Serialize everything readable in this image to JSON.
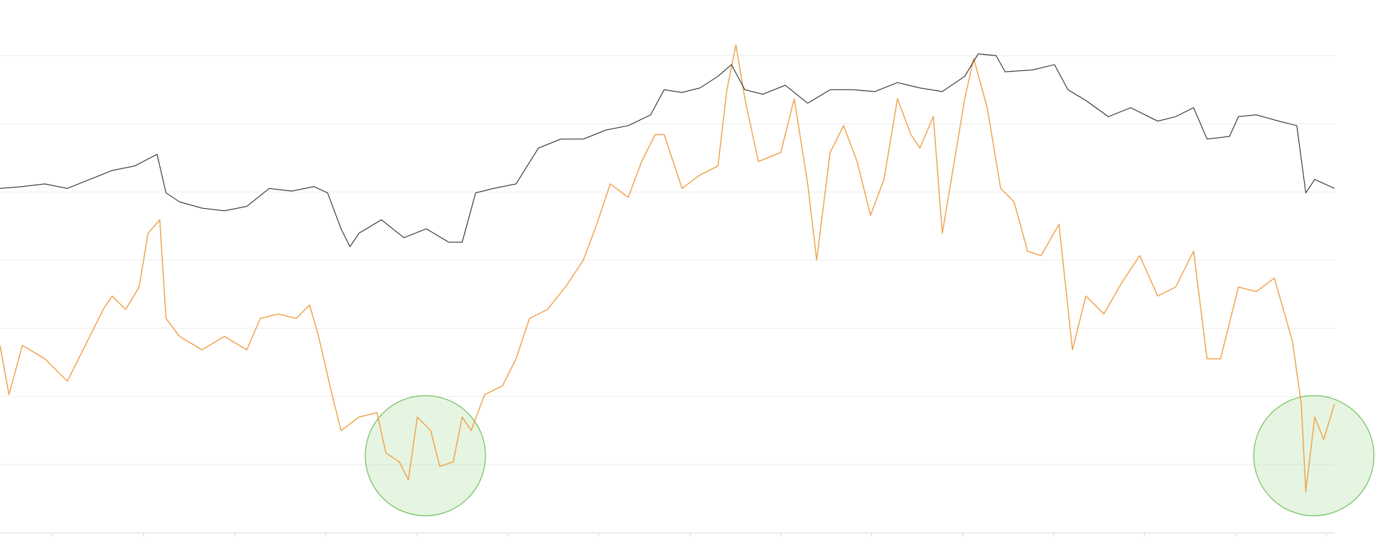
{
  "chart_data": {
    "type": "line",
    "xlim": [
      0,
      1487
    ],
    "xticks": [
      58,
      160,
      262,
      363,
      465,
      566,
      667,
      769,
      870,
      971,
      1073,
      1174,
      1275,
      1377,
      1478
    ],
    "ylim": [
      0,
      564
    ],
    "yticks": [
      76,
      152,
      228,
      304,
      380,
      456,
      532
    ],
    "grid": true,
    "series": [
      {
        "color": "#f0a550",
        "x": [
          0,
          10,
          25,
          50,
          75,
          100,
          115,
          125,
          140,
          155,
          165,
          178,
          185,
          200,
          225,
          250,
          275,
          290,
          310,
          330,
          345,
          355,
          370,
          380,
          400,
          420,
          430,
          445,
          455,
          465,
          480,
          490,
          505,
          515,
          525,
          540,
          560,
          575,
          590,
          610,
          630,
          650,
          665,
          680,
          700,
          715,
          730,
          740,
          760,
          780,
          800,
          810,
          820,
          830,
          845,
          870,
          885,
          900,
          910,
          925,
          940,
          955,
          970,
          985,
          1000,
          1015,
          1025,
          1040,
          1050,
          1065,
          1075,
          1085,
          1100,
          1115,
          1130,
          1145,
          1160,
          1180,
          1195,
          1210,
          1230,
          1250,
          1270,
          1290,
          1310,
          1330,
          1345,
          1360,
          1380,
          1400,
          1420,
          1440,
          1450,
          1455,
          1465,
          1475,
          1487
        ],
        "values": [
          209,
          154,
          209,
          194,
          169,
          219,
          249,
          264,
          249,
          274,
          334,
          349,
          239,
          219,
          204,
          219,
          204,
          239,
          244,
          239,
          254,
          219,
          154,
          114,
          129,
          134,
          89,
          79,
          59,
          129,
          114,
          74,
          79,
          129,
          114,
          154,
          164,
          194,
          239,
          249,
          274,
          304,
          344,
          389,
          374,
          414,
          444,
          444,
          384,
          399,
          409,
          494,
          544,
          484,
          414,
          424,
          484,
          389,
          304,
          424,
          454,
          414,
          354,
          394,
          484,
          444,
          429,
          464,
          334,
          424,
          484,
          529,
          474,
          384,
          369,
          314,
          309,
          344,
          204,
          264,
          244,
          279,
          309,
          264,
          274,
          314,
          194,
          194,
          274,
          269,
          284,
          214,
          144,
          46,
          129,
          104,
          144
        ]
      },
      {
        "color": "#333333",
        "x": [
          0,
          25,
          50,
          75,
          100,
          125,
          150,
          175,
          185,
          200,
          225,
          250,
          275,
          300,
          325,
          350,
          365,
          380,
          390,
          400,
          425,
          450,
          475,
          500,
          515,
          530,
          550,
          575,
          600,
          625,
          650,
          675,
          700,
          725,
          740,
          760,
          780,
          800,
          815,
          830,
          850,
          875,
          900,
          925,
          950,
          975,
          1000,
          1025,
          1050,
          1075,
          1090,
          1110,
          1120,
          1150,
          1175,
          1190,
          1210,
          1235,
          1260,
          1290,
          1310,
          1330,
          1345,
          1370,
          1380,
          1400,
          1425,
          1445,
          1455,
          1465,
          1487
        ],
        "values": [
          384,
          386,
          389,
          384,
          394,
          404,
          409,
          422,
          379,
          369,
          362,
          359,
          364,
          384,
          381,
          386,
          379,
          339,
          319,
          334,
          349,
          329,
          339,
          324,
          324,
          379,
          384,
          389,
          429,
          439,
          439,
          449,
          454,
          466,
          494,
          491,
          496,
          509,
          522,
          494,
          489,
          499,
          479,
          494,
          494,
          492,
          502,
          496,
          492,
          509,
          534,
          532,
          514,
          516,
          522,
          494,
          482,
          464,
          474,
          459,
          464,
          474,
          439,
          442,
          464,
          466,
          459,
          454,
          379,
          394,
          384
        ]
      }
    ]
  }
}
